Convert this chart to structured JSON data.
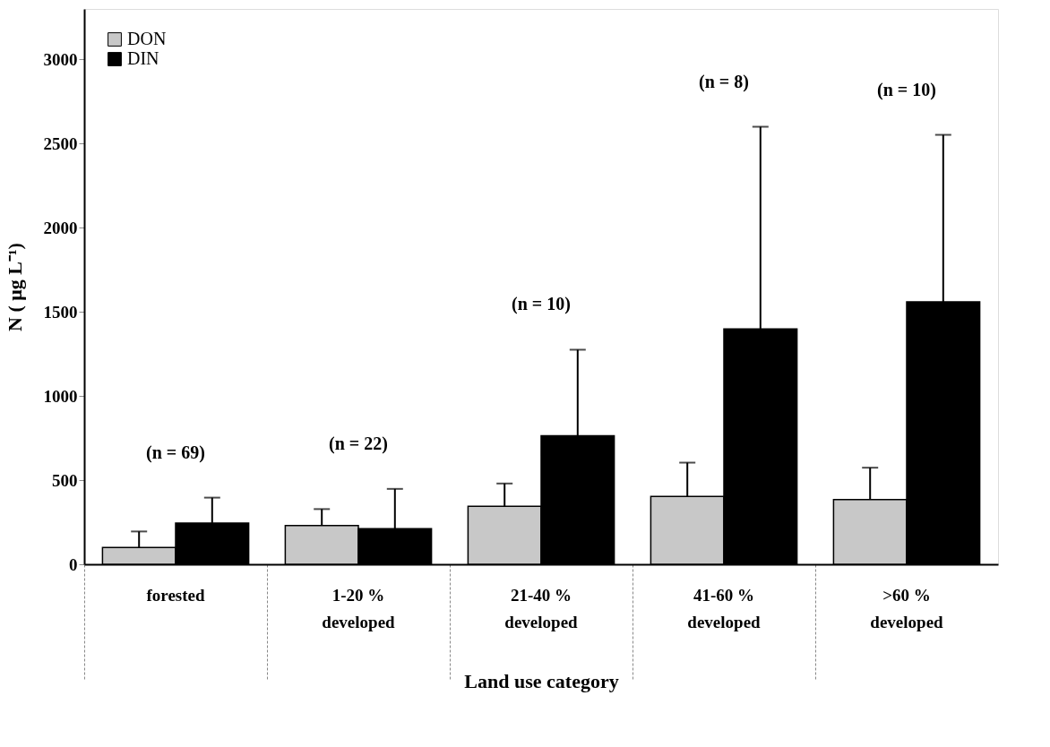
{
  "chart_data": {
    "type": "bar",
    "categories": [
      "forested",
      "1-20 %\ndeveloped",
      "21-40 %\ndeveloped",
      "41-60 %\ndeveloped",
      ">60 %\ndeveloped"
    ],
    "series": [
      {
        "name": "DON",
        "color": "#c8c8c8",
        "values": [
          100,
          230,
          345,
          403,
          384
        ],
        "errors": [
          [
            100,
            195
          ],
          [
            230,
            328
          ],
          [
            345,
            480
          ],
          [
            403,
            604
          ],
          [
            384,
            574
          ]
        ]
      },
      {
        "name": "DIN",
        "color": "#000000",
        "values": [
          245,
          212,
          764,
          1398,
          1559
        ],
        "errors": [
          [
            245,
            396
          ],
          [
            212,
            448
          ],
          [
            764,
            1275
          ],
          [
            1398,
            2600
          ],
          [
            1559,
            2552
          ]
        ]
      }
    ],
    "xlabel": "Land use category",
    "ylabel": "N ( μg L⁻¹)",
    "ylim": [
      0,
      3300
    ],
    "yticks": [
      0,
      500,
      1000,
      1500,
      2000,
      2500,
      3000
    ],
    "annotations": [
      "(n = 69)",
      "(n = 22)",
      "(n = 10)",
      "(n = 8)",
      "(n = 10)"
    ],
    "legend": "top left",
    "grid": false
  }
}
